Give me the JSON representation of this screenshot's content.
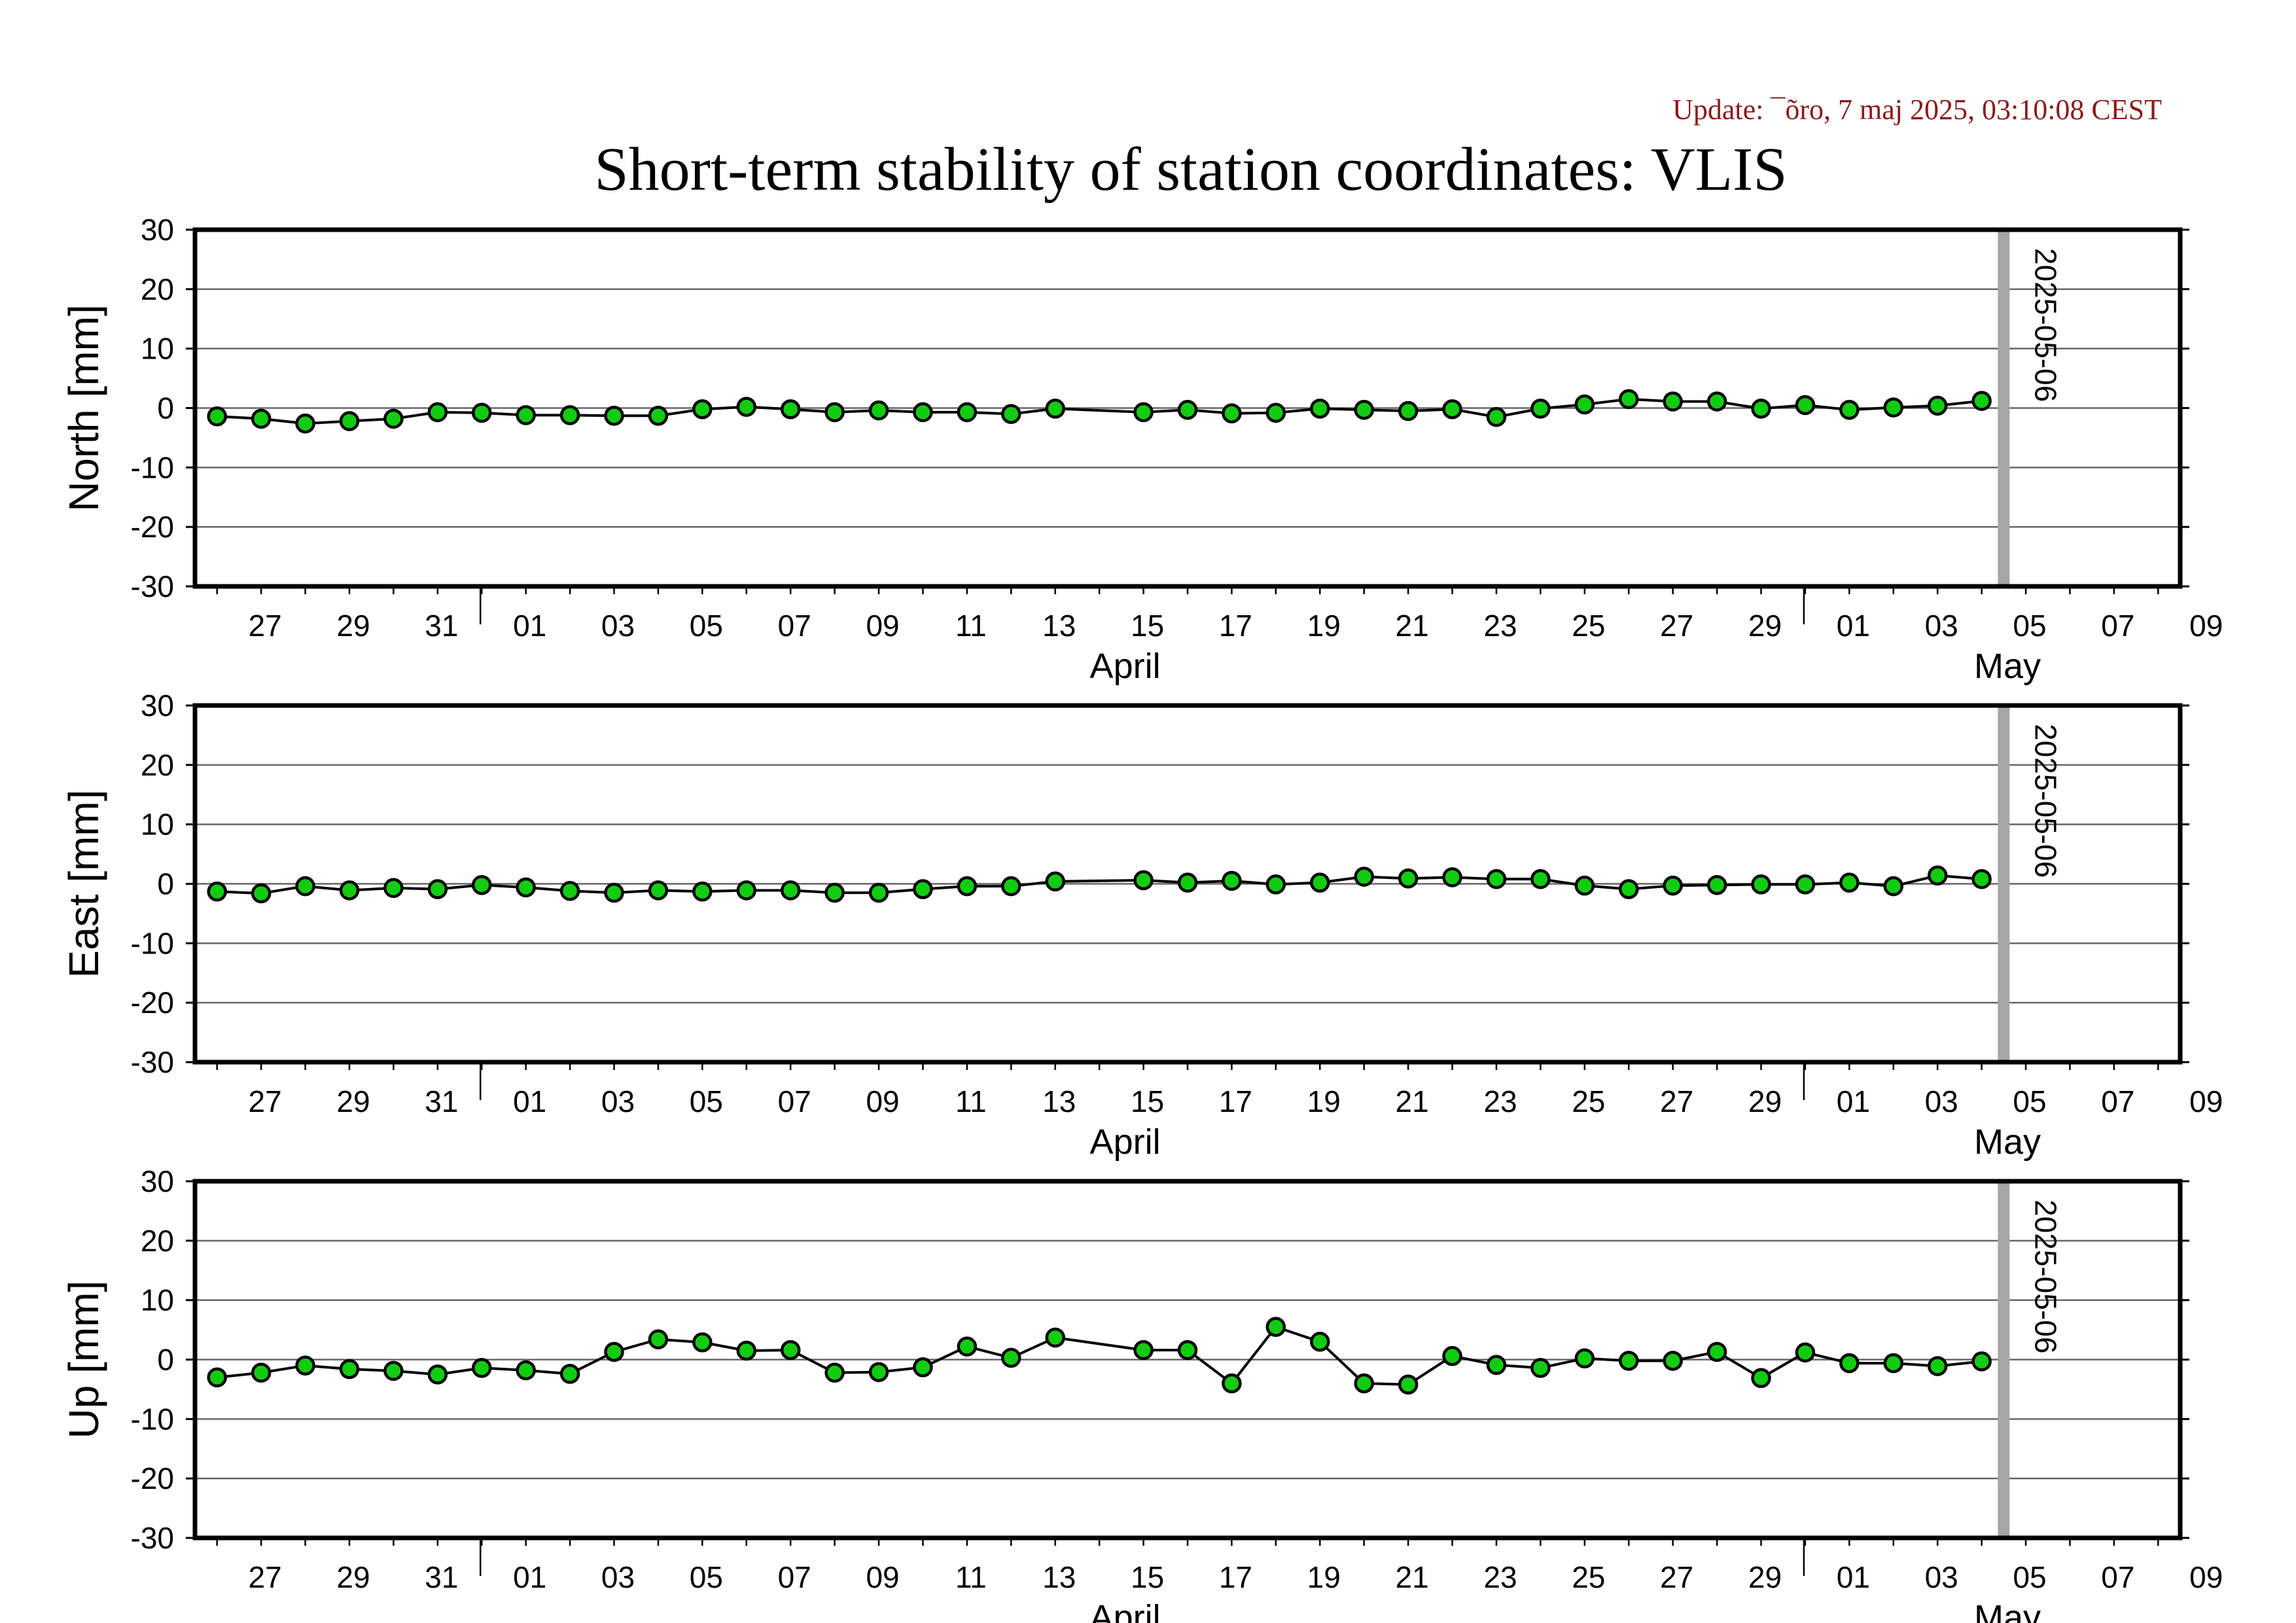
{
  "update_label": "Update: ¯õro, 7 maj 2025, 03:10:08 CEST",
  "title": "Short-term stability of station coordinates: VLIS",
  "colors": {
    "marker_fill": "#11cc11",
    "marker_stroke": "#000000",
    "line": "#000000",
    "grid": "#666666",
    "marker_bar": "#a6a6a6",
    "update_text": "#8b1a1a"
  },
  "chart_data": [
    {
      "type": "line",
      "ylabel": "North [mm]",
      "ylim": [
        -30,
        30
      ],
      "yticks": [
        30,
        20,
        10,
        0,
        -10,
        -20,
        -30
      ],
      "grid": true,
      "xlim": [
        "2025-03-25 12:00",
        "2025-05-09 12:00"
      ],
      "xtick_labels": [
        "27",
        "29",
        "31",
        "01",
        "03",
        "05",
        "07",
        "09",
        "11",
        "13",
        "15",
        "17",
        "19",
        "21",
        "23",
        "25",
        "27",
        "29",
        "01",
        "03",
        "05",
        "07",
        "09"
      ],
      "month_labels": [
        "April",
        "May"
      ],
      "marker_label": "2025-05-06",
      "series": [
        {
          "x": [
            "2025-03-26",
            "2025-03-27",
            "2025-03-28",
            "2025-03-29",
            "2025-03-30",
            "2025-03-31",
            "2025-04-01",
            "2025-04-02",
            "2025-04-03",
            "2025-04-04",
            "2025-04-05",
            "2025-04-06",
            "2025-04-07",
            "2025-04-08",
            "2025-04-09",
            "2025-04-10",
            "2025-04-11",
            "2025-04-12",
            "2025-04-13",
            "2025-04-14",
            "2025-04-16",
            "2025-04-17",
            "2025-04-18",
            "2025-04-19",
            "2025-04-20",
            "2025-04-21",
            "2025-04-22",
            "2025-04-23",
            "2025-04-24",
            "2025-04-25",
            "2025-04-26",
            "2025-04-27",
            "2025-04-28",
            "2025-04-29",
            "2025-04-30",
            "2025-05-01",
            "2025-05-02",
            "2025-05-03",
            "2025-05-04",
            "2025-05-05"
          ],
          "y": [
            -1.4,
            -1.8,
            -2.6,
            -2.2,
            -1.8,
            -0.7,
            -0.8,
            -1.2,
            -1.2,
            -1.3,
            -1.3,
            -0.2,
            0.2,
            -0.2,
            -0.7,
            -0.4,
            -0.7,
            -0.7,
            -1.0,
            -0.1,
            -0.7,
            -0.3,
            -0.9,
            -0.8,
            -0.1,
            -0.3,
            -0.5,
            -0.2,
            -1.5,
            -0.1,
            0.6,
            1.5,
            1.1,
            1.1,
            -0.1,
            0.5,
            -0.3,
            0.1,
            0.4,
            1.2
          ]
        }
      ]
    },
    {
      "type": "line",
      "ylabel": "East [mm]",
      "ylim": [
        -30,
        30
      ],
      "yticks": [
        30,
        20,
        10,
        0,
        -10,
        -20,
        -30
      ],
      "grid": true,
      "xlim": [
        "2025-03-25 12:00",
        "2025-05-09 12:00"
      ],
      "xtick_labels": [
        "27",
        "29",
        "31",
        "01",
        "03",
        "05",
        "07",
        "09",
        "11",
        "13",
        "15",
        "17",
        "19",
        "21",
        "23",
        "25",
        "27",
        "29",
        "01",
        "03",
        "05",
        "07",
        "09"
      ],
      "month_labels": [
        "April",
        "May"
      ],
      "marker_label": "2025-05-06",
      "series": [
        {
          "x": [
            "2025-03-26",
            "2025-03-27",
            "2025-03-28",
            "2025-03-29",
            "2025-03-30",
            "2025-03-31",
            "2025-04-01",
            "2025-04-02",
            "2025-04-03",
            "2025-04-04",
            "2025-04-05",
            "2025-04-06",
            "2025-04-07",
            "2025-04-08",
            "2025-04-09",
            "2025-04-10",
            "2025-04-11",
            "2025-04-12",
            "2025-04-13",
            "2025-04-14",
            "2025-04-16",
            "2025-04-17",
            "2025-04-18",
            "2025-04-19",
            "2025-04-20",
            "2025-04-21",
            "2025-04-22",
            "2025-04-23",
            "2025-04-24",
            "2025-04-25",
            "2025-04-26",
            "2025-04-27",
            "2025-04-28",
            "2025-04-29",
            "2025-04-30",
            "2025-05-01",
            "2025-05-02",
            "2025-05-03",
            "2025-05-04",
            "2025-05-05"
          ],
          "y": [
            -1.3,
            -1.6,
            -0.4,
            -1.1,
            -0.7,
            -0.9,
            -0.2,
            -0.6,
            -1.2,
            -1.5,
            -1.1,
            -1.3,
            -1.1,
            -1.1,
            -1.5,
            -1.5,
            -0.9,
            -0.4,
            -0.4,
            0.4,
            0.6,
            0.2,
            0.5,
            -0.1,
            0.2,
            1.2,
            0.9,
            1.1,
            0.8,
            0.8,
            -0.3,
            -0.9,
            -0.3,
            -0.2,
            -0.1,
            -0.1,
            0.2,
            -0.4,
            1.4,
            0.8
          ]
        }
      ]
    },
    {
      "type": "line",
      "ylabel": "Up [mm]",
      "ylim": [
        -30,
        30
      ],
      "yticks": [
        30,
        20,
        10,
        0,
        -10,
        -20,
        -30
      ],
      "grid": true,
      "xlim": [
        "2025-03-25 12:00",
        "2025-05-09 12:00"
      ],
      "xtick_labels": [
        "27",
        "29",
        "31",
        "01",
        "03",
        "05",
        "07",
        "09",
        "11",
        "13",
        "15",
        "17",
        "19",
        "21",
        "23",
        "25",
        "27",
        "29",
        "01",
        "03",
        "05",
        "07",
        "09"
      ],
      "month_labels": [
        "April",
        "May"
      ],
      "marker_label": "2025-05-06",
      "series": [
        {
          "x": [
            "2025-03-26",
            "2025-03-27",
            "2025-03-28",
            "2025-03-29",
            "2025-03-30",
            "2025-03-31",
            "2025-04-01",
            "2025-04-02",
            "2025-04-03",
            "2025-04-04",
            "2025-04-05",
            "2025-04-06",
            "2025-04-07",
            "2025-04-08",
            "2025-04-09",
            "2025-04-10",
            "2025-04-11",
            "2025-04-12",
            "2025-04-13",
            "2025-04-14",
            "2025-04-16",
            "2025-04-17",
            "2025-04-18",
            "2025-04-19",
            "2025-04-20",
            "2025-04-21",
            "2025-04-22",
            "2025-04-23",
            "2025-04-24",
            "2025-04-25",
            "2025-04-26",
            "2025-04-27",
            "2025-04-28",
            "2025-04-29",
            "2025-04-30",
            "2025-05-01",
            "2025-05-02",
            "2025-05-03",
            "2025-05-04",
            "2025-05-05"
          ],
          "y": [
            -3.0,
            -2.2,
            -1.0,
            -1.6,
            -1.9,
            -2.5,
            -1.4,
            -1.8,
            -2.4,
            1.3,
            3.4,
            2.9,
            1.5,
            1.6,
            -2.2,
            -2.1,
            -1.3,
            2.2,
            0.3,
            3.7,
            1.6,
            1.6,
            -4.0,
            5.5,
            3.0,
            -4.0,
            -4.2,
            0.6,
            -0.9,
            -1.4,
            0.2,
            -0.2,
            -0.2,
            1.3,
            -3.1,
            1.2,
            -0.6,
            -0.6,
            -1.1,
            -0.3
          ]
        }
      ]
    }
  ]
}
